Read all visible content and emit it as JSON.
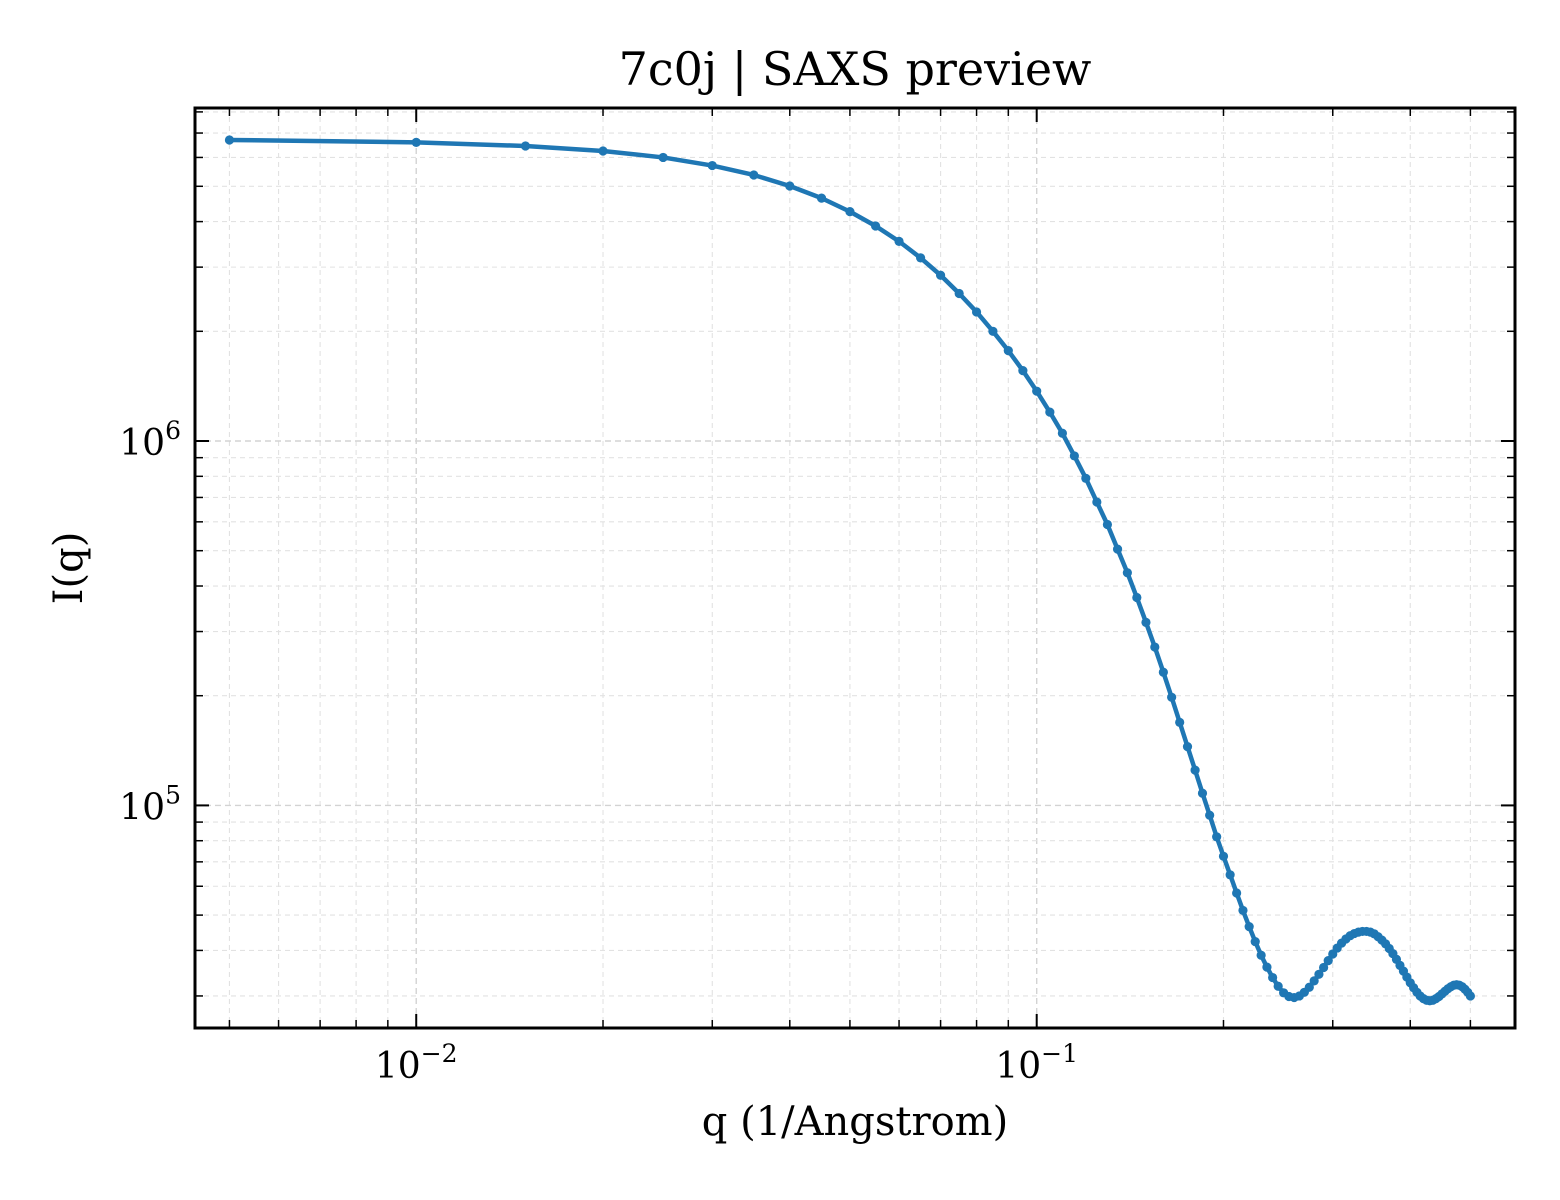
{
  "chart_data": {
    "type": "line",
    "title": "7c0j | SAXS preview",
    "xlabel": "q (1/Angstrom)",
    "ylabel": "I(q)",
    "xscale": "log",
    "yscale": "log",
    "xlim": [
      0.0044,
      0.59
    ],
    "ylim": [
      24500,
      8200000
    ],
    "grid": true,
    "legend": "none",
    "x_ticks": [
      {
        "value": 0.01,
        "label_base": "10",
        "label_exp": "−2"
      },
      {
        "value": 0.1,
        "label_base": "10",
        "label_exp": "−1"
      }
    ],
    "y_ticks": [
      {
        "value": 100000,
        "label_base": "10",
        "label_exp": "5"
      },
      {
        "value": 1000000,
        "label_base": "10",
        "label_exp": "6"
      }
    ],
    "color": "#1f77b4",
    "series": [
      {
        "x": [
          0.005,
          0.01,
          0.015,
          0.02,
          0.025,
          0.03,
          0.035,
          0.04,
          0.045,
          0.05,
          0.055,
          0.06,
          0.065,
          0.07,
          0.075,
          0.08,
          0.085,
          0.09,
          0.095,
          0.1,
          0.105,
          0.11,
          0.115,
          0.12,
          0.125,
          0.13,
          0.135,
          0.14,
          0.145,
          0.15,
          0.155,
          0.16,
          0.165,
          0.17,
          0.175,
          0.18,
          0.185,
          0.19,
          0.195,
          0.2,
          0.205,
          0.21,
          0.215,
          0.22,
          0.225,
          0.23,
          0.235,
          0.24,
          0.245,
          0.25,
          0.255,
          0.26,
          0.265,
          0.27,
          0.275,
          0.28,
          0.285,
          0.29,
          0.295,
          0.3,
          0.305,
          0.31,
          0.315,
          0.32,
          0.325,
          0.33,
          0.335,
          0.34,
          0.345,
          0.35,
          0.355,
          0.36,
          0.365,
          0.37,
          0.375,
          0.38,
          0.385,
          0.39,
          0.395,
          0.4,
          0.405,
          0.41,
          0.415,
          0.42,
          0.425,
          0.43,
          0.435,
          0.44,
          0.445,
          0.45,
          0.455,
          0.46,
          0.465,
          0.47,
          0.475,
          0.48,
          0.485,
          0.49,
          0.495,
          0.5
        ],
        "y": [
          6700000,
          6600000,
          6450000,
          6250000,
          6000000,
          5700000,
          5370000,
          5010000,
          4640000,
          4260000,
          3890000,
          3530000,
          3180000,
          2850000,
          2540000,
          2260000,
          2000000,
          1770000,
          1560000,
          1370000,
          1200000,
          1050000,
          910000,
          790000,
          680000,
          590000,
          505000,
          435000,
          372000,
          318000,
          272000,
          232000,
          198000,
          169000,
          145000,
          125000,
          108000,
          94000,
          82000,
          72500,
          64500,
          57500,
          51500,
          46500,
          42300,
          38800,
          36000,
          33700,
          31900,
          30600,
          29900,
          29700,
          30000,
          30700,
          31700,
          33000,
          34400,
          35900,
          37500,
          39100,
          40600,
          41900,
          43000,
          43900,
          44500,
          44900,
          45100,
          45100,
          44900,
          44400,
          43600,
          42700,
          41700,
          40500,
          39200,
          37800,
          36400,
          35100,
          33800,
          32600,
          31600,
          30700,
          30000,
          29500,
          29200,
          29100,
          29200,
          29500,
          29900,
          30400,
          30900,
          31400,
          31800,
          32100,
          32200,
          32100,
          31800,
          31300,
          30700,
          30000
        ]
      }
    ]
  }
}
